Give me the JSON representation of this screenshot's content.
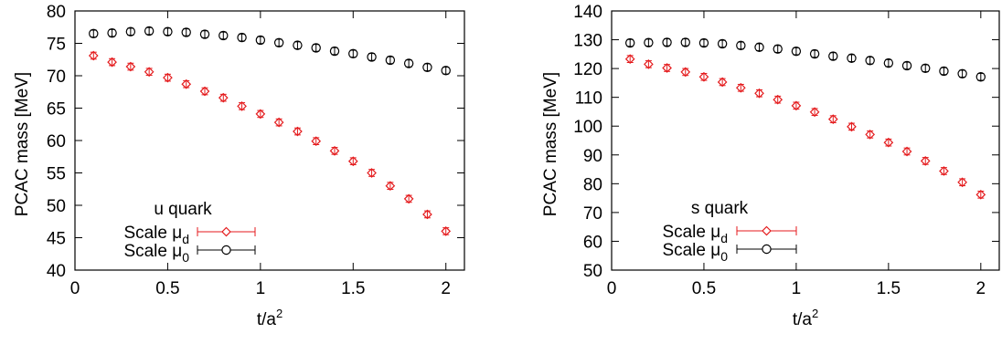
{
  "chart_data": [
    {
      "type": "scatter",
      "legend_title": "u quark",
      "xlabel": {
        "base": "t/a",
        "sup": "2"
      },
      "ylabel": "PCAC mass [MeV]",
      "xlim": [
        0,
        2.1
      ],
      "ylim": [
        40,
        80
      ],
      "xticks": [
        0,
        0.5,
        1,
        1.5,
        2
      ],
      "xtick_labels": [
        "0",
        "0.5",
        "1",
        "1.5",
        "2"
      ],
      "yticks": [
        40,
        45,
        50,
        55,
        60,
        65,
        70,
        75,
        80
      ],
      "ytick_labels": [
        "40",
        "45",
        "50",
        "55",
        "60",
        "65",
        "70",
        "75",
        "80"
      ],
      "legend_position": "bottom-left",
      "grid": false,
      "series": [
        {
          "name": "Scale μd",
          "label": {
            "base": "Scale  μ",
            "sub": "d"
          },
          "color": "#e41a1c",
          "marker": "diamond",
          "x": [
            0.1,
            0.2,
            0.3,
            0.4,
            0.5,
            0.6,
            0.7,
            0.8,
            0.9,
            1.0,
            1.1,
            1.2,
            1.3,
            1.4,
            1.5,
            1.6,
            1.7,
            1.8,
            1.9,
            2.0
          ],
          "y": [
            73.1,
            72.1,
            71.4,
            70.6,
            69.7,
            68.7,
            67.6,
            66.6,
            65.3,
            64.1,
            62.8,
            61.4,
            59.9,
            58.4,
            56.8,
            55.0,
            53.0,
            51.0,
            48.6,
            46.0
          ]
        },
        {
          "name": "Scale μ0",
          "label": {
            "base": "Scale  μ",
            "sub": "0"
          },
          "color": "#000000",
          "marker": "circle",
          "x": [
            0.1,
            0.2,
            0.3,
            0.4,
            0.5,
            0.6,
            0.7,
            0.8,
            0.9,
            1.0,
            1.1,
            1.2,
            1.3,
            1.4,
            1.5,
            1.6,
            1.7,
            1.8,
            1.9,
            2.0
          ],
          "y": [
            76.5,
            76.6,
            76.8,
            76.9,
            76.8,
            76.7,
            76.4,
            76.2,
            75.9,
            75.5,
            75.1,
            74.7,
            74.3,
            73.8,
            73.4,
            72.9,
            72.4,
            71.9,
            71.3,
            70.8
          ]
        }
      ]
    },
    {
      "type": "scatter",
      "legend_title": "s quark",
      "xlabel": {
        "base": "t/a",
        "sup": "2"
      },
      "ylabel": "PCAC mass [MeV]",
      "xlim": [
        0,
        2.1
      ],
      "ylim": [
        50,
        140
      ],
      "xticks": [
        0,
        0.5,
        1,
        1.5,
        2
      ],
      "xtick_labels": [
        "0",
        "0.5",
        "1",
        "1.5",
        "2"
      ],
      "yticks": [
        50,
        60,
        70,
        80,
        90,
        100,
        110,
        120,
        130,
        140
      ],
      "ytick_labels": [
        "50",
        "60",
        "70",
        "80",
        "90",
        "100",
        "110",
        "120",
        "130",
        "140"
      ],
      "legend_position": "bottom-left",
      "grid": false,
      "series": [
        {
          "name": "Scale μd",
          "label": {
            "base": "Scale  μ",
            "sub": "d"
          },
          "color": "#e41a1c",
          "marker": "diamond",
          "x": [
            0.1,
            0.2,
            0.3,
            0.4,
            0.5,
            0.6,
            0.7,
            0.8,
            0.9,
            1.0,
            1.1,
            1.2,
            1.3,
            1.4,
            1.5,
            1.6,
            1.7,
            1.8,
            1.9,
            2.0
          ],
          "y": [
            123.3,
            121.5,
            120.2,
            118.8,
            117.1,
            115.3,
            113.3,
            111.4,
            109.2,
            107.1,
            104.9,
            102.4,
            99.8,
            97.1,
            94.3,
            91.2,
            87.9,
            84.4,
            80.5,
            76.2
          ]
        },
        {
          "name": "Scale μ0",
          "label": {
            "base": "Scale  μ",
            "sub": "0"
          },
          "color": "#000000",
          "marker": "circle",
          "x": [
            0.1,
            0.2,
            0.3,
            0.4,
            0.5,
            0.6,
            0.7,
            0.8,
            0.9,
            1.0,
            1.1,
            1.2,
            1.3,
            1.4,
            1.5,
            1.6,
            1.7,
            1.8,
            1.9,
            2.0
          ],
          "y": [
            128.9,
            129.0,
            129.1,
            129.1,
            128.9,
            128.6,
            128.0,
            127.4,
            126.8,
            126.0,
            125.1,
            124.3,
            123.6,
            122.8,
            121.9,
            121.0,
            120.1,
            119.1,
            118.2,
            117.1
          ]
        }
      ]
    }
  ]
}
